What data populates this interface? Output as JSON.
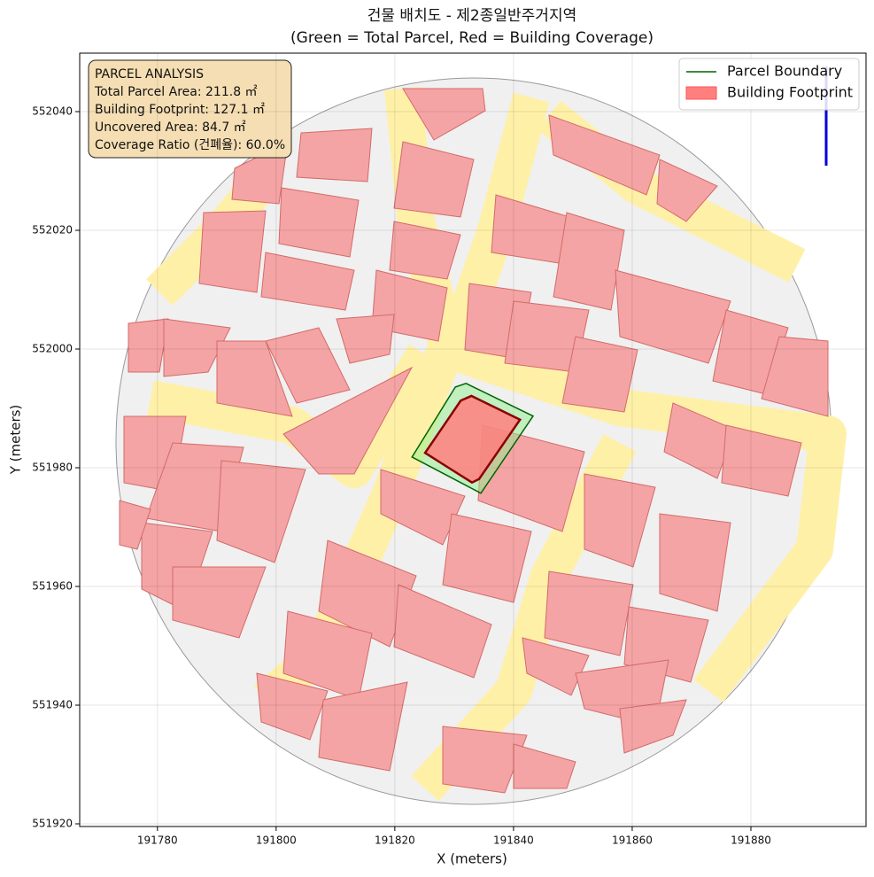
{
  "chart_data": {
    "type": "polygon",
    "title": "건물 배치도 - 제2종일반주거지역",
    "subtitle": "(Green = Total Parcel, Red = Building Coverage)",
    "xlabel": "X (meters)",
    "ylabel": "Y (meters)",
    "xlim": [
      191766.9,
      191899.4
    ],
    "ylim": [
      551919.55,
      552049.85
    ],
    "xticks": [
      191780,
      191800,
      191820,
      191840,
      191860,
      191880
    ],
    "yticks": [
      551920,
      551940,
      551960,
      551980,
      552000,
      552020,
      552040
    ],
    "grid": true,
    "legend": "upper right",
    "series": [
      {
        "name": "Parcel Boundary",
        "color": "#006400",
        "fill": "#90ee90",
        "x": [
          191822.9,
          191830.2,
          191832.0,
          191843.3,
          191834.5
        ],
        "values": [
          551981.8,
          551993.6,
          551994.2,
          551988.7,
          551975.7
        ]
      },
      {
        "name": "Building Footprint",
        "color": "#8b0000",
        "fill": "#ff7f7f",
        "x": [
          191825.1,
          191831.1,
          191832.9,
          191841.1,
          191834.2,
          191833.0
        ],
        "values": [
          551982.5,
          551991.3,
          551992.1,
          551988.1,
          551978.1,
          551977.5
        ]
      }
    ],
    "annotation": [
      "PARCEL ANALYSIS",
      "Total Parcel Area: 211.8 ㎡",
      "Building Footprint: 127.1 ㎡",
      "Uncovered Area: 84.7 ㎡",
      "Coverage Ratio (건폐율): 60.0%"
    ]
  }
}
